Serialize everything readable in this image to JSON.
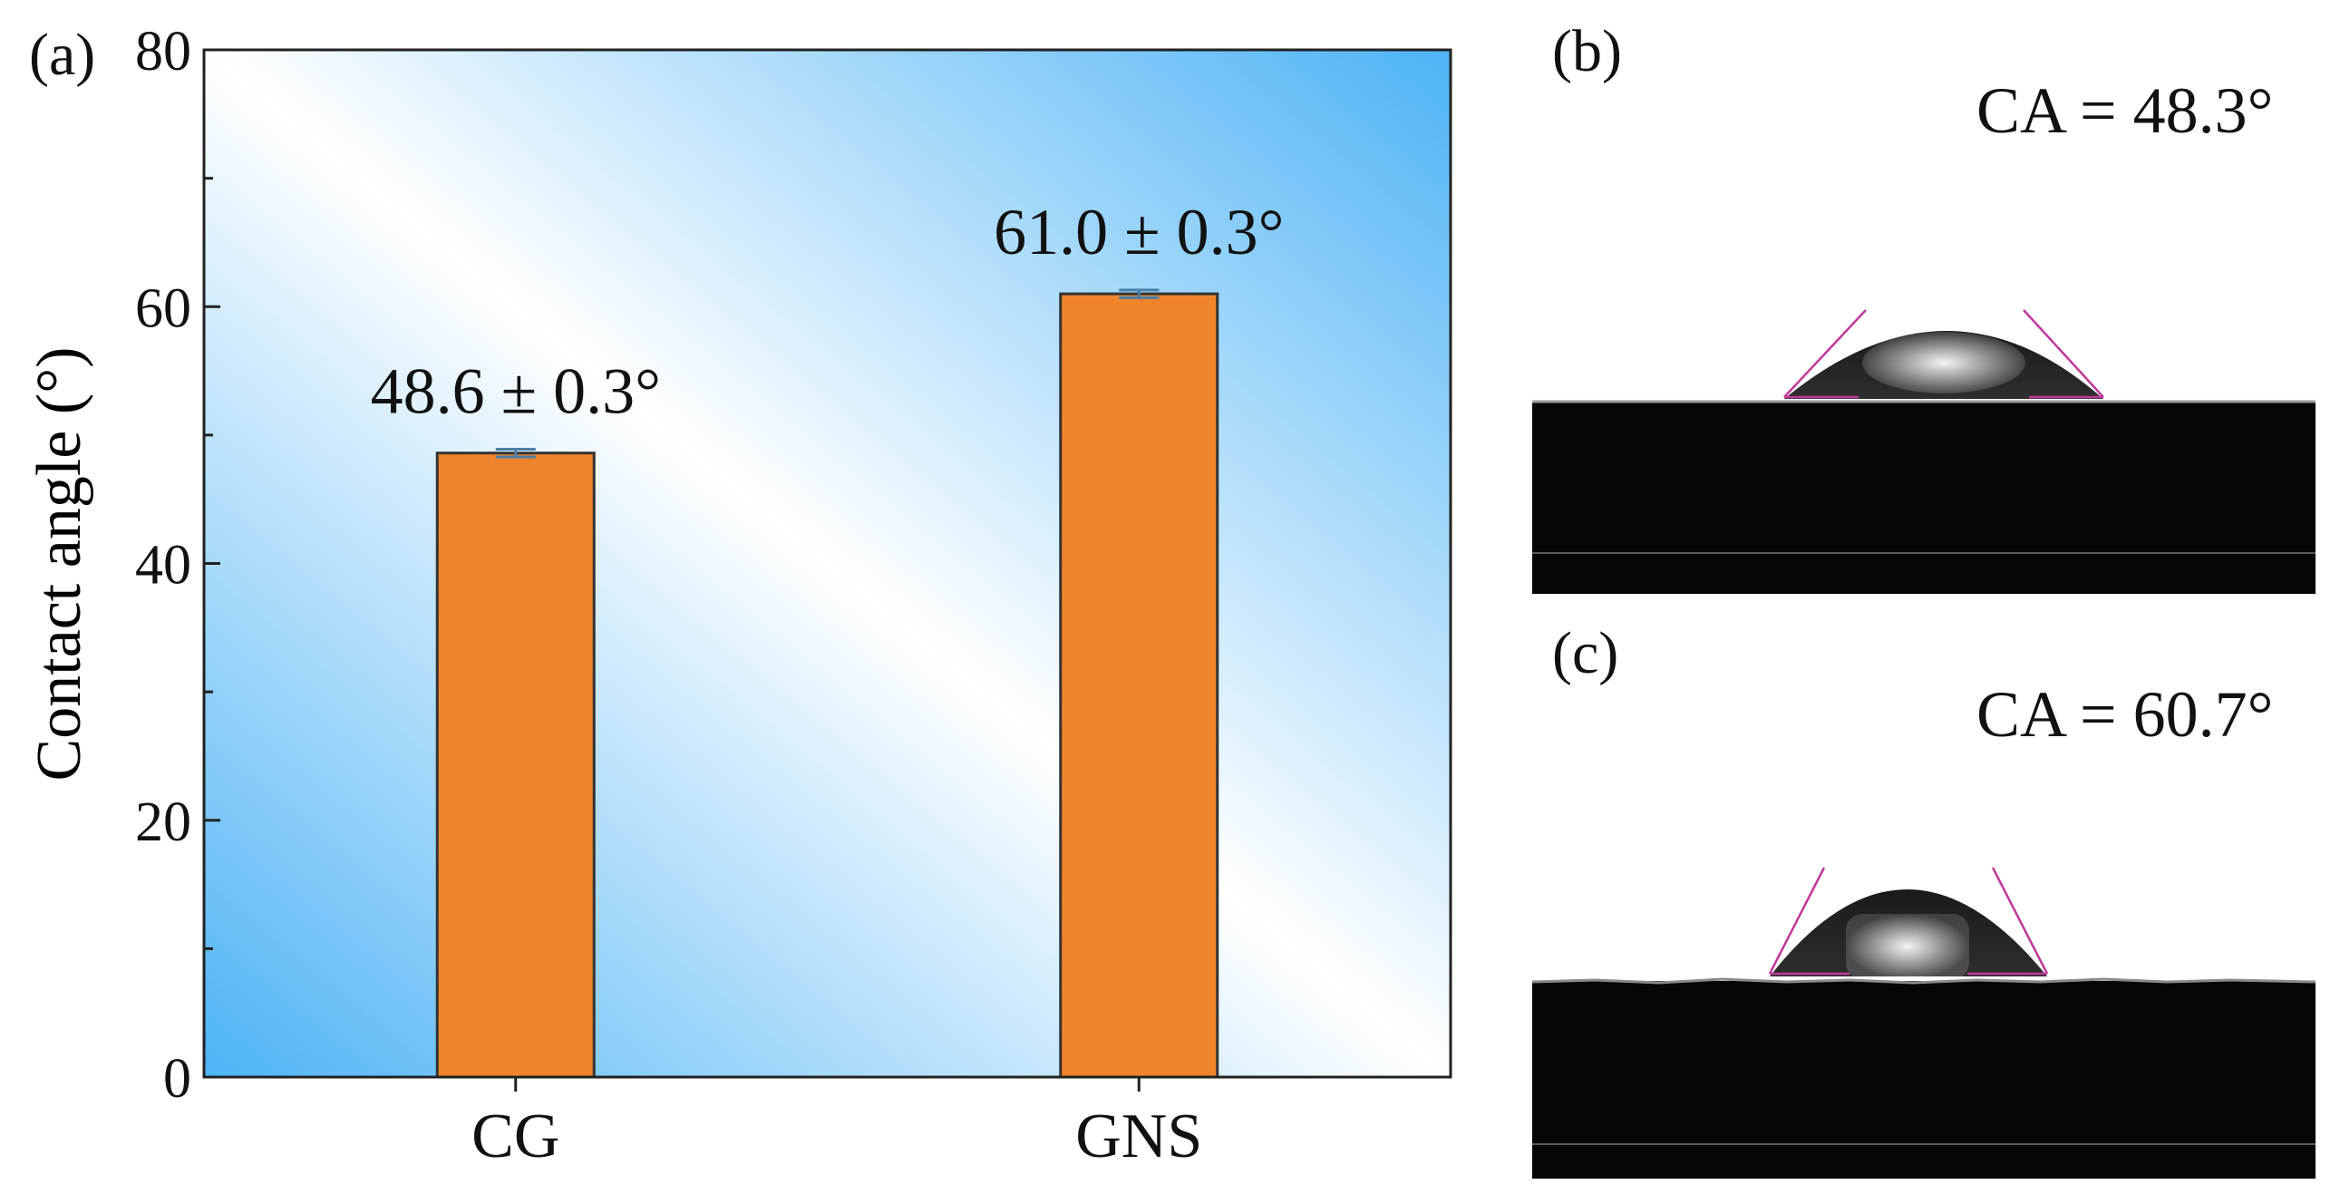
{
  "panels": {
    "a": {
      "label": "(a)"
    },
    "b": {
      "label": "(b)",
      "ca_text": "CA = 48.3°",
      "contact_angle_deg": 48.3
    },
    "c": {
      "label": "(c)",
      "ca_text": "CA = 60.7°",
      "contact_angle_deg": 60.7
    }
  },
  "chart_data": {
    "type": "bar",
    "title": "",
    "xlabel": "",
    "ylabel": "Contact angle (°)",
    "categories": [
      "CG",
      "GNS"
    ],
    "values": [
      48.6,
      61.0
    ],
    "errors": [
      0.3,
      0.3
    ],
    "data_labels": [
      "48.6 ± 0.3°",
      "61.0 ± 0.3°"
    ],
    "ylim": [
      0,
      80
    ],
    "yticks": [
      0,
      20,
      40,
      60,
      80
    ],
    "y_minor_ticks": [
      10,
      30,
      50,
      70
    ],
    "grid": false,
    "bar_color": "#F0842C",
    "bar_edge_color": "#333333",
    "background_gradient": [
      "#4DB3F5",
      "#FFFFFF",
      "#4DB3F5"
    ]
  },
  "colors": {
    "tangent_line": "#C0389A",
    "photo_substrate": "#050505",
    "photo_background": "#FFFFFF"
  }
}
